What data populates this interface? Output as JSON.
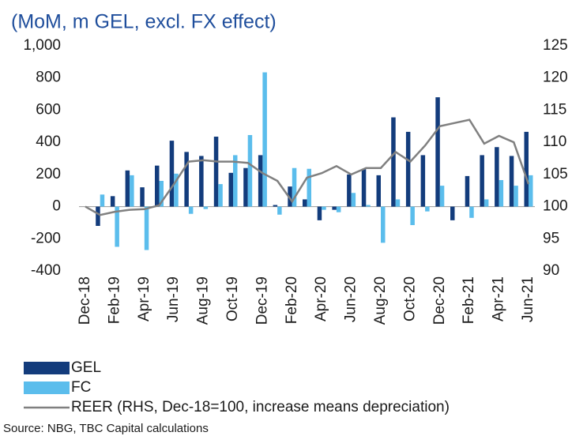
{
  "chart_data": {
    "type": "bar_line",
    "title": "(MoM, m GEL, excl. FX effect)",
    "source": "Source: NBG, TBC Capital calculations",
    "categories": [
      "Dec-18",
      null,
      "Feb-19",
      null,
      "Apr-19",
      null,
      "Jun-19",
      null,
      "Aug-19",
      null,
      "Oct-19",
      null,
      "Dec-19",
      null,
      "Feb-20",
      null,
      "Apr-20",
      null,
      "Jun-20",
      null,
      "Aug-20",
      null,
      "Oct-20",
      null,
      "Dec-20",
      null,
      "Feb-21",
      null,
      "Apr-21",
      null,
      "Jun-21"
    ],
    "series": [
      {
        "name": "GEL",
        "color": "#133c7c",
        "values": [
          0,
          -120,
          65,
          225,
          120,
          255,
          410,
          340,
          315,
          435,
          210,
          240,
          320,
          10,
          125,
          45,
          -85,
          -20,
          200,
          235,
          195,
          555,
          465,
          320,
          680,
          -85,
          190,
          320,
          370,
          315,
          465
        ]
      },
      {
        "name": "FC",
        "color": "#5bbdec",
        "values": [
          0,
          75,
          -250,
          195,
          -270,
          160,
          205,
          -45,
          -15,
          140,
          320,
          445,
          835,
          -50,
          240,
          235,
          -20,
          -35,
          85,
          10,
          -225,
          45,
          -115,
          -30,
          130,
          0,
          -70,
          45,
          165,
          130,
          195
        ]
      },
      {
        "name": "REER (RHS, Dec-18=100, increase means depreciation)",
        "color": "#808080",
        "axis": "y2",
        "values": [
          100,
          98.7,
          99.2,
          99.5,
          99.6,
          100.2,
          103.5,
          107,
          107.2,
          107,
          107,
          106.8,
          105.2,
          104,
          100.8,
          104.5,
          105.2,
          106.3,
          105,
          106,
          106,
          108.5,
          107,
          109.5,
          112.5,
          113,
          113.5,
          109.8,
          111,
          110,
          103.5
        ]
      }
    ],
    "ylim": [
      -400,
      1000
    ],
    "yticks": [
      -400,
      -200,
      0,
      200,
      400,
      600,
      800,
      {
        "value": 1000,
        "label": "1,000"
      }
    ],
    "y2lim": [
      90,
      125
    ],
    "y2ticks": [
      90,
      95,
      100,
      105,
      110,
      115,
      120,
      125
    ]
  }
}
